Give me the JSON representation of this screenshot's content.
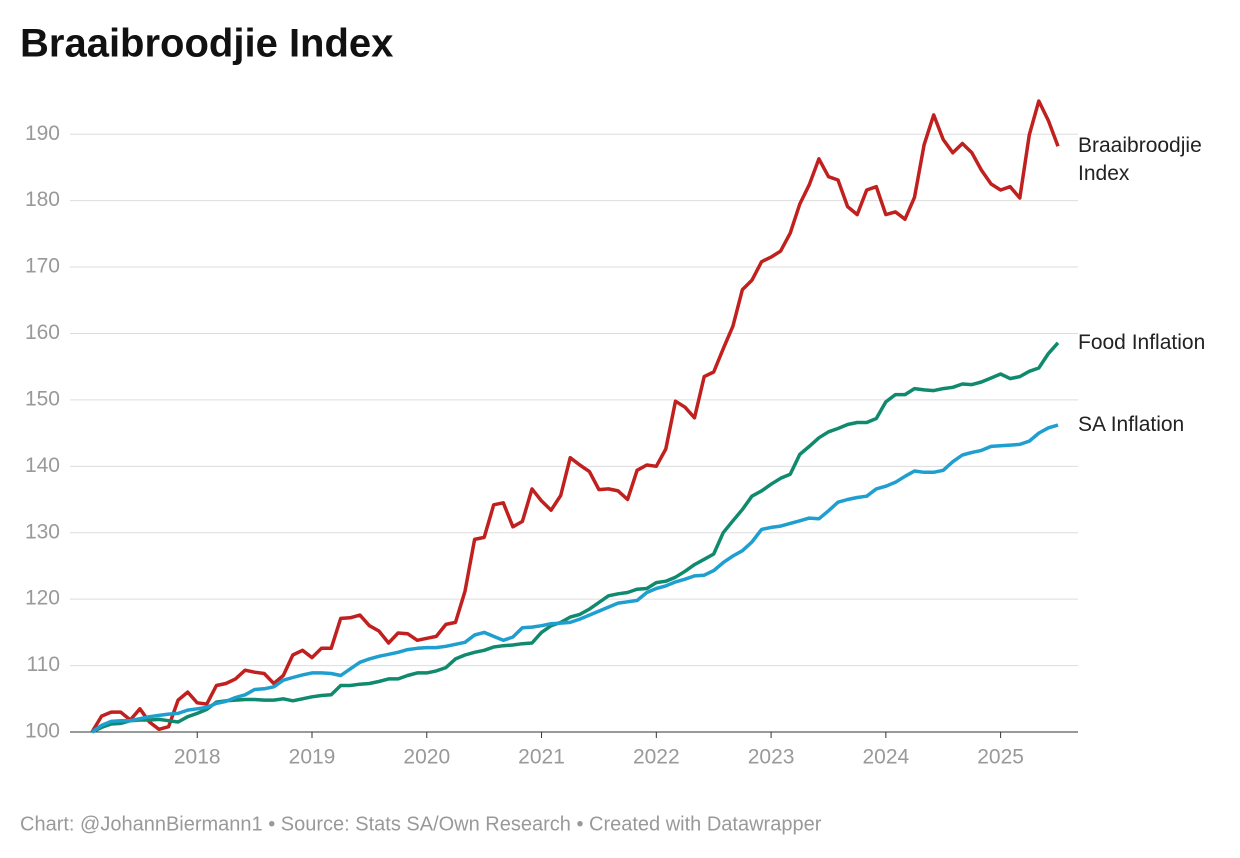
{
  "chart_data": {
    "type": "line",
    "title": "Braaibroodjie Index",
    "source": "Chart: @JohannBiermann1 • Source: Stats SA/Own Research • Created with Datawrapper",
    "x": [
      2017.083,
      2017.167,
      2017.25,
      2017.333,
      2017.417,
      2017.5,
      2017.583,
      2017.667,
      2017.75,
      2017.833,
      2017.917,
      2018,
      2018.083,
      2018.167,
      2018.25,
      2018.333,
      2018.417,
      2018.5,
      2018.583,
      2018.667,
      2018.75,
      2018.833,
      2018.917,
      2019,
      2019.083,
      2019.167,
      2019.25,
      2019.333,
      2019.417,
      2019.5,
      2019.583,
      2019.667,
      2019.75,
      2019.833,
      2019.917,
      2020,
      2020.083,
      2020.167,
      2020.25,
      2020.333,
      2020.417,
      2020.5,
      2020.583,
      2020.667,
      2020.75,
      2020.833,
      2020.917,
      2021,
      2021.083,
      2021.167,
      2021.25,
      2021.333,
      2021.417,
      2021.5,
      2021.583,
      2021.667,
      2021.75,
      2021.833,
      2021.917,
      2022,
      2022.083,
      2022.167,
      2022.25,
      2022.333,
      2022.417,
      2022.5,
      2022.583,
      2022.667,
      2022.75,
      2022.833,
      2022.917,
      2023,
      2023.083,
      2023.167,
      2023.25,
      2023.333,
      2023.417,
      2023.5,
      2023.583,
      2023.667,
      2023.75,
      2023.833,
      2023.917,
      2024,
      2024.083,
      2024.167,
      2024.25,
      2024.333,
      2024.417,
      2024.5,
      2024.583,
      2024.667,
      2024.75,
      2024.833,
      2024.917,
      2025,
      2025.083,
      2025.167,
      2025.25,
      2025.333,
      2025.417,
      2025.5
    ],
    "series": [
      {
        "name": "Braaibroodjie Index",
        "color": "#c0211f",
        "values": [
          100,
          102.4,
          103,
          103,
          101.8,
          103.5,
          101.5,
          100.4,
          100.8,
          104.8,
          106,
          104.4,
          104.2,
          107,
          107.3,
          108,
          109.3,
          109,
          108.8,
          107.3,
          108.5,
          111.6,
          112.3,
          111.2,
          112.6,
          112.6,
          117.1,
          117.2,
          117.6,
          116,
          115.2,
          113.4,
          114.9,
          114.8,
          113.8,
          114.1,
          114.4,
          116.2,
          116.5,
          121.2,
          129,
          129.3,
          134.2,
          134.5,
          130.9,
          131.7,
          136.6,
          134.8,
          133.4,
          135.6,
          141.3,
          140.2,
          139.2,
          136.5,
          136.6,
          136.3,
          135,
          139.4,
          140.2,
          140,
          142.6,
          149.8,
          148.9,
          147.3,
          153.5,
          154.2,
          157.7,
          161.1,
          166.6,
          168,
          170.8,
          171.5,
          172.4,
          175.1,
          179.5,
          182.4,
          186.3,
          183.6,
          183.1,
          179.1,
          177.9,
          181.6,
          182.1,
          177.9,
          178.3,
          177.2,
          180.5,
          188.4,
          192.9,
          189.2,
          187.2,
          188.6,
          187.2,
          184.6,
          182.5,
          181.6,
          182.1,
          180.4,
          189.9,
          195,
          192,
          188.2
        ]
      },
      {
        "name": "Food Inflation",
        "color": "#0f8a6e",
        "values": [
          100,
          100.7,
          101.2,
          101.3,
          101.7,
          101.8,
          101.8,
          101.9,
          101.7,
          101.5,
          102.3,
          102.8,
          103.4,
          104.5,
          104.7,
          104.8,
          104.9,
          104.9,
          104.8,
          104.8,
          105,
          104.7,
          105,
          105.3,
          105.5,
          105.6,
          107,
          107,
          107.2,
          107.3,
          107.6,
          108,
          108,
          108.5,
          108.9,
          108.9,
          109.2,
          109.7,
          111,
          111.6,
          112,
          112.3,
          112.8,
          113,
          113.1,
          113.3,
          113.4,
          115,
          116,
          116.5,
          117.3,
          117.7,
          118.5,
          119.5,
          120.5,
          120.8,
          121,
          121.5,
          121.6,
          122.5,
          122.7,
          123.3,
          124.2,
          125.2,
          126,
          126.8,
          130,
          131.8,
          133.5,
          135.5,
          136.3,
          137.3,
          138.2,
          138.8,
          141.8,
          143,
          144.3,
          145.2,
          145.7,
          146.3,
          146.6,
          146.6,
          147.2,
          149.7,
          150.8,
          150.8,
          151.7,
          151.5,
          151.4,
          151.7,
          151.9,
          152.4,
          152.3,
          152.7,
          153.3,
          153.9,
          153.2,
          153.5,
          154.3,
          154.8,
          157,
          158.6
        ]
      },
      {
        "name": "SA Inflation",
        "color": "#1f9fd0",
        "values": [
          100,
          101,
          101.6,
          101.7,
          101.7,
          102,
          102.3,
          102.5,
          102.7,
          102.8,
          103.3,
          103.5,
          103.7,
          104.3,
          104.6,
          105.2,
          105.6,
          106.4,
          106.5,
          106.8,
          107.8,
          108.2,
          108.6,
          108.9,
          108.9,
          108.8,
          108.5,
          109.5,
          110.5,
          111,
          111.4,
          111.7,
          112,
          112.4,
          112.6,
          112.7,
          112.7,
          112.9,
          113.2,
          113.5,
          114.6,
          115,
          114.4,
          113.8,
          114.3,
          115.7,
          115.8,
          116,
          116.3,
          116.4,
          116.5,
          117,
          117.6,
          118.2,
          118.8,
          119.4,
          119.6,
          119.8,
          121,
          121.6,
          122,
          122.6,
          123,
          123.5,
          123.6,
          124.3,
          125.5,
          126.5,
          127.3,
          128.6,
          130.5,
          130.8,
          131,
          131.4,
          131.8,
          132.2,
          132.1,
          133.3,
          134.6,
          135,
          135.3,
          135.5,
          136.6,
          137,
          137.6,
          138.5,
          139.3,
          139.1,
          139.1,
          139.4,
          140.7,
          141.7,
          142.1,
          142.4,
          143,
          143.1,
          143.2,
          143.3,
          143.8,
          145,
          145.8,
          146.2
        ]
      }
    ],
    "xlim": [
      2017.083,
      2025.5
    ],
    "xticks": [
      2018,
      2019,
      2020,
      2021,
      2022,
      2023,
      2024,
      2025
    ],
    "ylim": [
      100,
      195
    ],
    "yticks": [
      100,
      110,
      120,
      130,
      140,
      150,
      160,
      170,
      180,
      190
    ],
    "grid": true
  }
}
